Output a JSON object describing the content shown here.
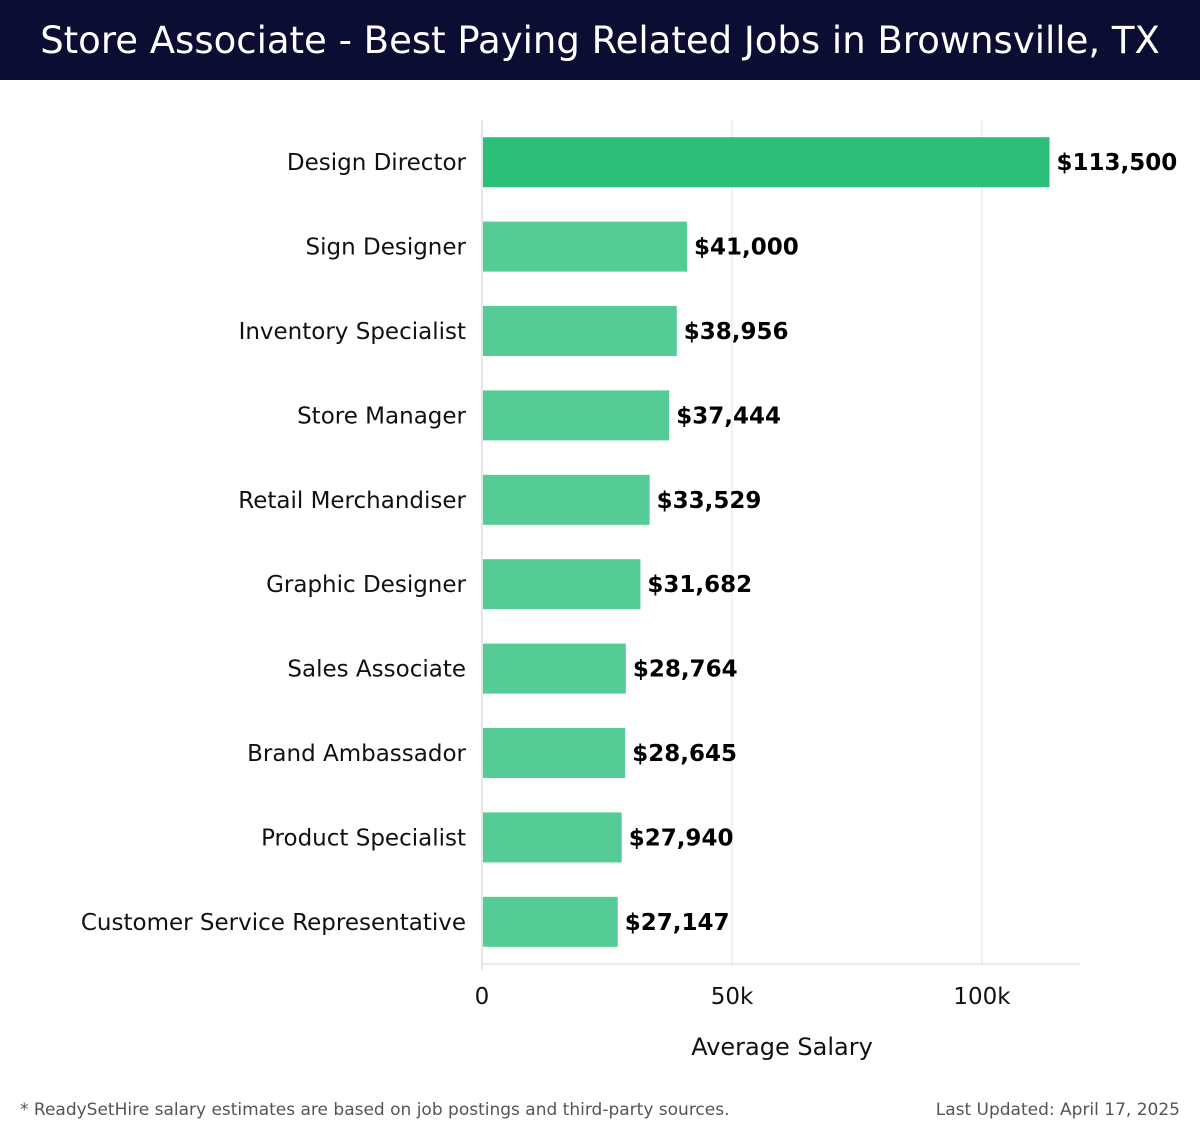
{
  "header": {
    "title": "Store Associate - Best Paying Related Jobs in Brownsville, TX"
  },
  "chart_data": {
    "type": "bar",
    "orientation": "horizontal",
    "title": "Store Associate - Best Paying Related Jobs in Brownsville, TX",
    "xlabel": "Average Salary",
    "ylabel": "",
    "xlim": [
      0,
      120000
    ],
    "x_ticks": [
      0,
      50000,
      100000
    ],
    "x_tick_labels": [
      "0",
      "50k",
      "100k"
    ],
    "grid": true,
    "categories": [
      "Design Director",
      "Sign Designer",
      "Inventory Specialist",
      "Store Manager",
      "Retail Merchandiser",
      "Graphic Designer",
      "Sales Associate",
      "Brand Ambassador",
      "Product Specialist",
      "Customer Service Representative"
    ],
    "values": [
      113500,
      41000,
      38956,
      37444,
      33529,
      31682,
      28764,
      28645,
      27940,
      27147
    ],
    "value_labels": [
      "$113,500",
      "$41,000",
      "$38,956",
      "$37,444",
      "$33,529",
      "$31,682",
      "$28,764",
      "$28,645",
      "$27,940",
      "$27,147"
    ],
    "highlight_color": "#2bbf79",
    "bar_color": "#55cc95"
  },
  "footer": {
    "note": "* ReadySetHire salary estimates are based on job postings and third-party sources.",
    "updated": "Last Updated: April 17, 2025"
  }
}
